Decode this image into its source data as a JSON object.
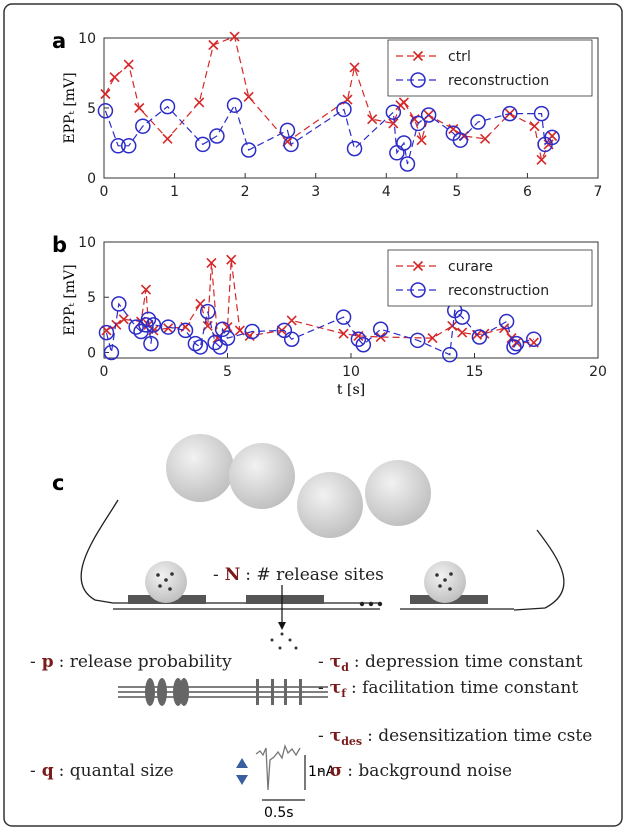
{
  "chart_data": [
    {
      "type": "line",
      "panel_label": "a",
      "ylabel": "EPPₜ [mV]",
      "xlim": [
        0,
        7
      ],
      "xticks": [
        0,
        1,
        2,
        3,
        4,
        5,
        6,
        7
      ],
      "ylim": [
        0,
        10
      ],
      "yticks": [
        0,
        5,
        10
      ],
      "legend": "upper right",
      "series": [
        {
          "name": "ctrl",
          "color": "#d62728",
          "marker": "x",
          "linestyle": "dashed",
          "x": [
            0.02,
            0.15,
            0.35,
            0.5,
            0.9,
            1.35,
            1.55,
            1.85,
            2.05,
            2.6,
            3.45,
            3.55,
            3.8,
            4.1,
            4.2,
            4.25,
            4.4,
            4.5,
            4.6,
            4.95,
            5.1,
            5.4,
            5.75,
            6.1,
            6.2,
            6.3,
            6.35
          ],
          "values": [
            6.0,
            7.2,
            8.1,
            5.0,
            2.8,
            5.4,
            9.5,
            10.1,
            5.8,
            2.6,
            5.6,
            7.9,
            4.2,
            3.9,
            5.2,
            5.4,
            4.2,
            2.7,
            4.5,
            3.5,
            3.0,
            2.8,
            4.6,
            3.7,
            1.3,
            2.4,
            3.0
          ]
        },
        {
          "name": "reconstruction",
          "color": "#2c2cc8",
          "marker": "o",
          "linestyle": "dashed",
          "x": [
            0.02,
            0.2,
            0.35,
            0.55,
            0.9,
            1.4,
            1.6,
            1.85,
            2.05,
            2.6,
            2.65,
            3.4,
            3.55,
            4.1,
            4.15,
            4.25,
            4.3,
            4.45,
            4.6,
            4.95,
            5.05,
            5.3,
            5.75,
            6.2,
            6.25,
            6.35
          ],
          "values": [
            4.8,
            2.3,
            2.3,
            3.7,
            5.1,
            2.4,
            3.0,
            5.2,
            2.0,
            3.4,
            2.4,
            4.9,
            2.1,
            4.7,
            1.8,
            2.5,
            1.0,
            3.9,
            4.5,
            3.2,
            2.7,
            4.0,
            4.6,
            4.6,
            2.4,
            2.9
          ]
        }
      ]
    },
    {
      "type": "line",
      "panel_label": "b",
      "ylabel": "EPPₜ [mV]",
      "xlabel": "t [s]",
      "xlim": [
        0,
        20
      ],
      "xticks": [
        0,
        5,
        10,
        15,
        20
      ],
      "ylim": [
        -0.5,
        10
      ],
      "yticks": [
        0,
        5,
        10
      ],
      "legend": "upper right",
      "series": [
        {
          "name": "curare",
          "color": "#d62728",
          "marker": "x",
          "linestyle": "dashed",
          "x": [
            0.1,
            0.5,
            0.8,
            1.5,
            1.7,
            1.8,
            2.0,
            2.6,
            3.3,
            3.9,
            4.2,
            4.35,
            4.6,
            5.0,
            5.15,
            5.5,
            5.9,
            7.2,
            7.6,
            9.7,
            10.3,
            11.2,
            13.3,
            14.1,
            14.5,
            15.1,
            15.4,
            16.2,
            16.5,
            16.7,
            17.4
          ],
          "values": [
            2.0,
            2.5,
            3.0,
            2.8,
            5.7,
            2.5,
            2.0,
            2.2,
            2.3,
            4.4,
            2.4,
            8.1,
            1.3,
            2.3,
            8.4,
            2.0,
            1.5,
            2.0,
            2.9,
            1.7,
            1.5,
            1.4,
            1.3,
            2.4,
            1.8,
            1.6,
            1.7,
            2.2,
            1.3,
            0.9,
            0.9
          ]
        },
        {
          "name": "reconstruction",
          "color": "#2c2cc8",
          "marker": "o",
          "linestyle": "dashed",
          "x": [
            0.1,
            0.3,
            0.6,
            1.3,
            1.5,
            1.7,
            1.8,
            1.9,
            2.0,
            2.6,
            3.3,
            3.7,
            3.9,
            4.2,
            4.5,
            4.7,
            4.8,
            5.0,
            6.0,
            7.3,
            7.6,
            9.7,
            10.3,
            10.5,
            11.2,
            12.7,
            14.0,
            14.2,
            14.5,
            15.2,
            16.3,
            16.6,
            16.7,
            17.4
          ],
          "values": [
            1.8,
            0.0,
            4.4,
            2.3,
            1.9,
            2.5,
            3.0,
            0.8,
            2.5,
            2.3,
            2.0,
            0.8,
            0.5,
            3.7,
            0.9,
            0.5,
            2.1,
            1.3,
            1.9,
            2.0,
            1.2,
            3.2,
            1.2,
            0.7,
            2.1,
            1.1,
            -0.2,
            3.8,
            3.2,
            1.4,
            2.8,
            0.5,
            0.8,
            1.2
          ]
        }
      ]
    }
  ],
  "diagram": {
    "panel_label": "c",
    "params": [
      {
        "prefix": "-",
        "symbol": "N",
        "text": ": # release sites"
      },
      {
        "prefix": "-",
        "symbol": "p",
        "text": ": release probability"
      },
      {
        "prefix": "-",
        "symbol": "τ",
        "sub": "d",
        "text": ": depression time constant"
      },
      {
        "prefix": "-",
        "symbol": "τ",
        "sub": "f",
        "text": ": facilitation time constant"
      },
      {
        "prefix": "-",
        "symbol": "τ",
        "sub": "des",
        "text": ": desensitization time cste"
      },
      {
        "prefix": "-",
        "symbol": "q",
        "text": ": quantal size"
      },
      {
        "prefix": "-",
        "symbol": "σ",
        "text": ": background noise"
      }
    ],
    "scale_current": "1nA",
    "scale_time": "0.5s"
  }
}
